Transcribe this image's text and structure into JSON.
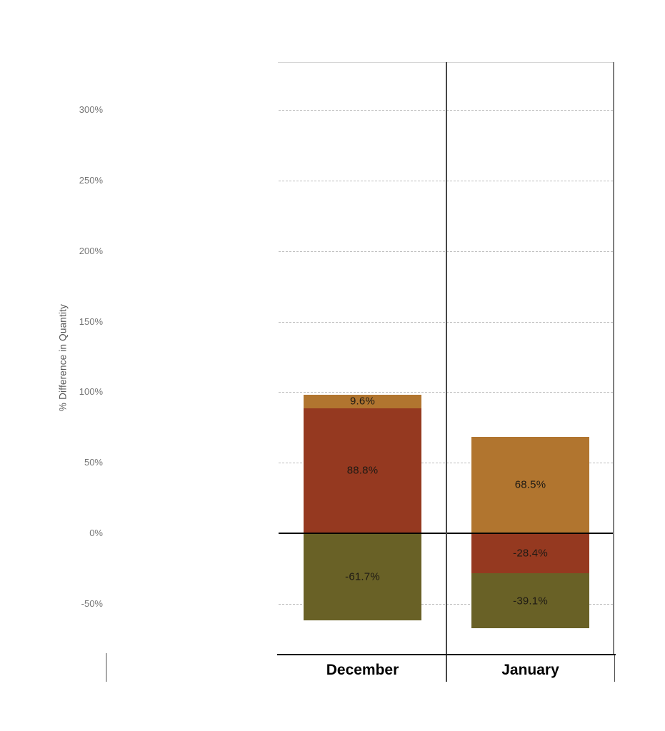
{
  "chart_data": {
    "type": "bar",
    "stacked": true,
    "title": "",
    "xlabel": "",
    "ylabel": "% Difference in Quantity",
    "categories": [
      "December",
      "January"
    ],
    "series": [
      {
        "name": "orange",
        "color": "#B1752F",
        "values": [
          9.6,
          68.5
        ]
      },
      {
        "name": "brick-red",
        "color": "#953920",
        "values": [
          88.8,
          -28.4
        ]
      },
      {
        "name": "olive",
        "color": "#696126",
        "values": [
          -61.7,
          -39.1
        ]
      }
    ],
    "data_labels": [
      [
        "9.6%",
        "88.8%",
        "-61.7%"
      ],
      [
        "68.5%",
        "-28.4%",
        "-39.1%"
      ]
    ],
    "y_ticks": [
      {
        "value": 300,
        "label": "300%"
      },
      {
        "value": 250,
        "label": "250%"
      },
      {
        "value": 200,
        "label": "200%"
      },
      {
        "value": 150,
        "label": "150%"
      },
      {
        "value": 100,
        "label": "100%"
      },
      {
        "value": 50,
        "label": "50%"
      },
      {
        "value": 0,
        "label": "0%"
      },
      {
        "value": -50,
        "label": "-50%"
      }
    ],
    "ylim": [
      -86,
      334
    ],
    "grid": "horizontal-dashed",
    "legend": "none",
    "zero_line": true,
    "colors": {
      "zero_line": "#000000",
      "gridline": "#bdbdbd",
      "tick_text": "#757575",
      "label_text": "#1e1a14"
    }
  }
}
